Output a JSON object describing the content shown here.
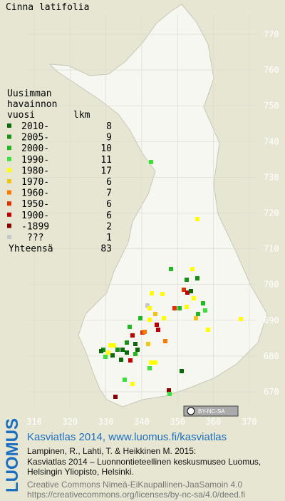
{
  "map": {
    "title": "Cinna latifolia",
    "grid_y": [
      770,
      760,
      750,
      740,
      730,
      720,
      710,
      700,
      690,
      680,
      670
    ],
    "grid_x": [
      310,
      320,
      330,
      340,
      350,
      360,
      370
    ],
    "license_badge": "BY-NC-SA"
  },
  "legend": {
    "header": [
      "Uusimman",
      "havainnon",
      "vuosi"
    ],
    "count_header": "lkm",
    "rows": [
      {
        "label": "2010-",
        "count": 8,
        "color": "#0a6a0a"
      },
      {
        "label": "2005-",
        "count": 9,
        "color": "#178f17"
      },
      {
        "label": "2000-",
        "count": 10,
        "color": "#22b822"
      },
      {
        "label": "1990-",
        "count": 11,
        "color": "#3ce03c"
      },
      {
        "label": "1980-",
        "count": 17,
        "color": "#ffff00"
      },
      {
        "label": "1970-",
        "count": 6,
        "color": "#f2c416"
      },
      {
        "label": "1960-",
        "count": 7,
        "color": "#ff7a00"
      },
      {
        "label": "1950-",
        "count": 6,
        "color": "#e03000"
      },
      {
        "label": "1900-",
        "count": 6,
        "color": "#c00000"
      },
      {
        "label": "-1899",
        "count": 2,
        "color": "#860000"
      },
      {
        "label": "???",
        "count": 1,
        "color": "#c8c8c8"
      }
    ],
    "total_label": "Yhteensä",
    "total": 83
  },
  "footer": {
    "logo": "LUOMUS",
    "lines": [
      "Kasviatlas 2014, www.luomus.fi/kasviatlas",
      "Lampinen, R., Lahti, T. & Heikkinen M. 2015:",
      "Kasviatlas 2014 – Luonnontieteellinen keskusmuseo Luomus,",
      "Helsingin Yliopisto, Helsinki.",
      "Creative Commons Nimeä-EiKaupallinen-JaaSamoin 4.0",
      "https://creativecommons.org/licenses/by-nc-sa/4.0/deed.fi"
    ]
  }
}
